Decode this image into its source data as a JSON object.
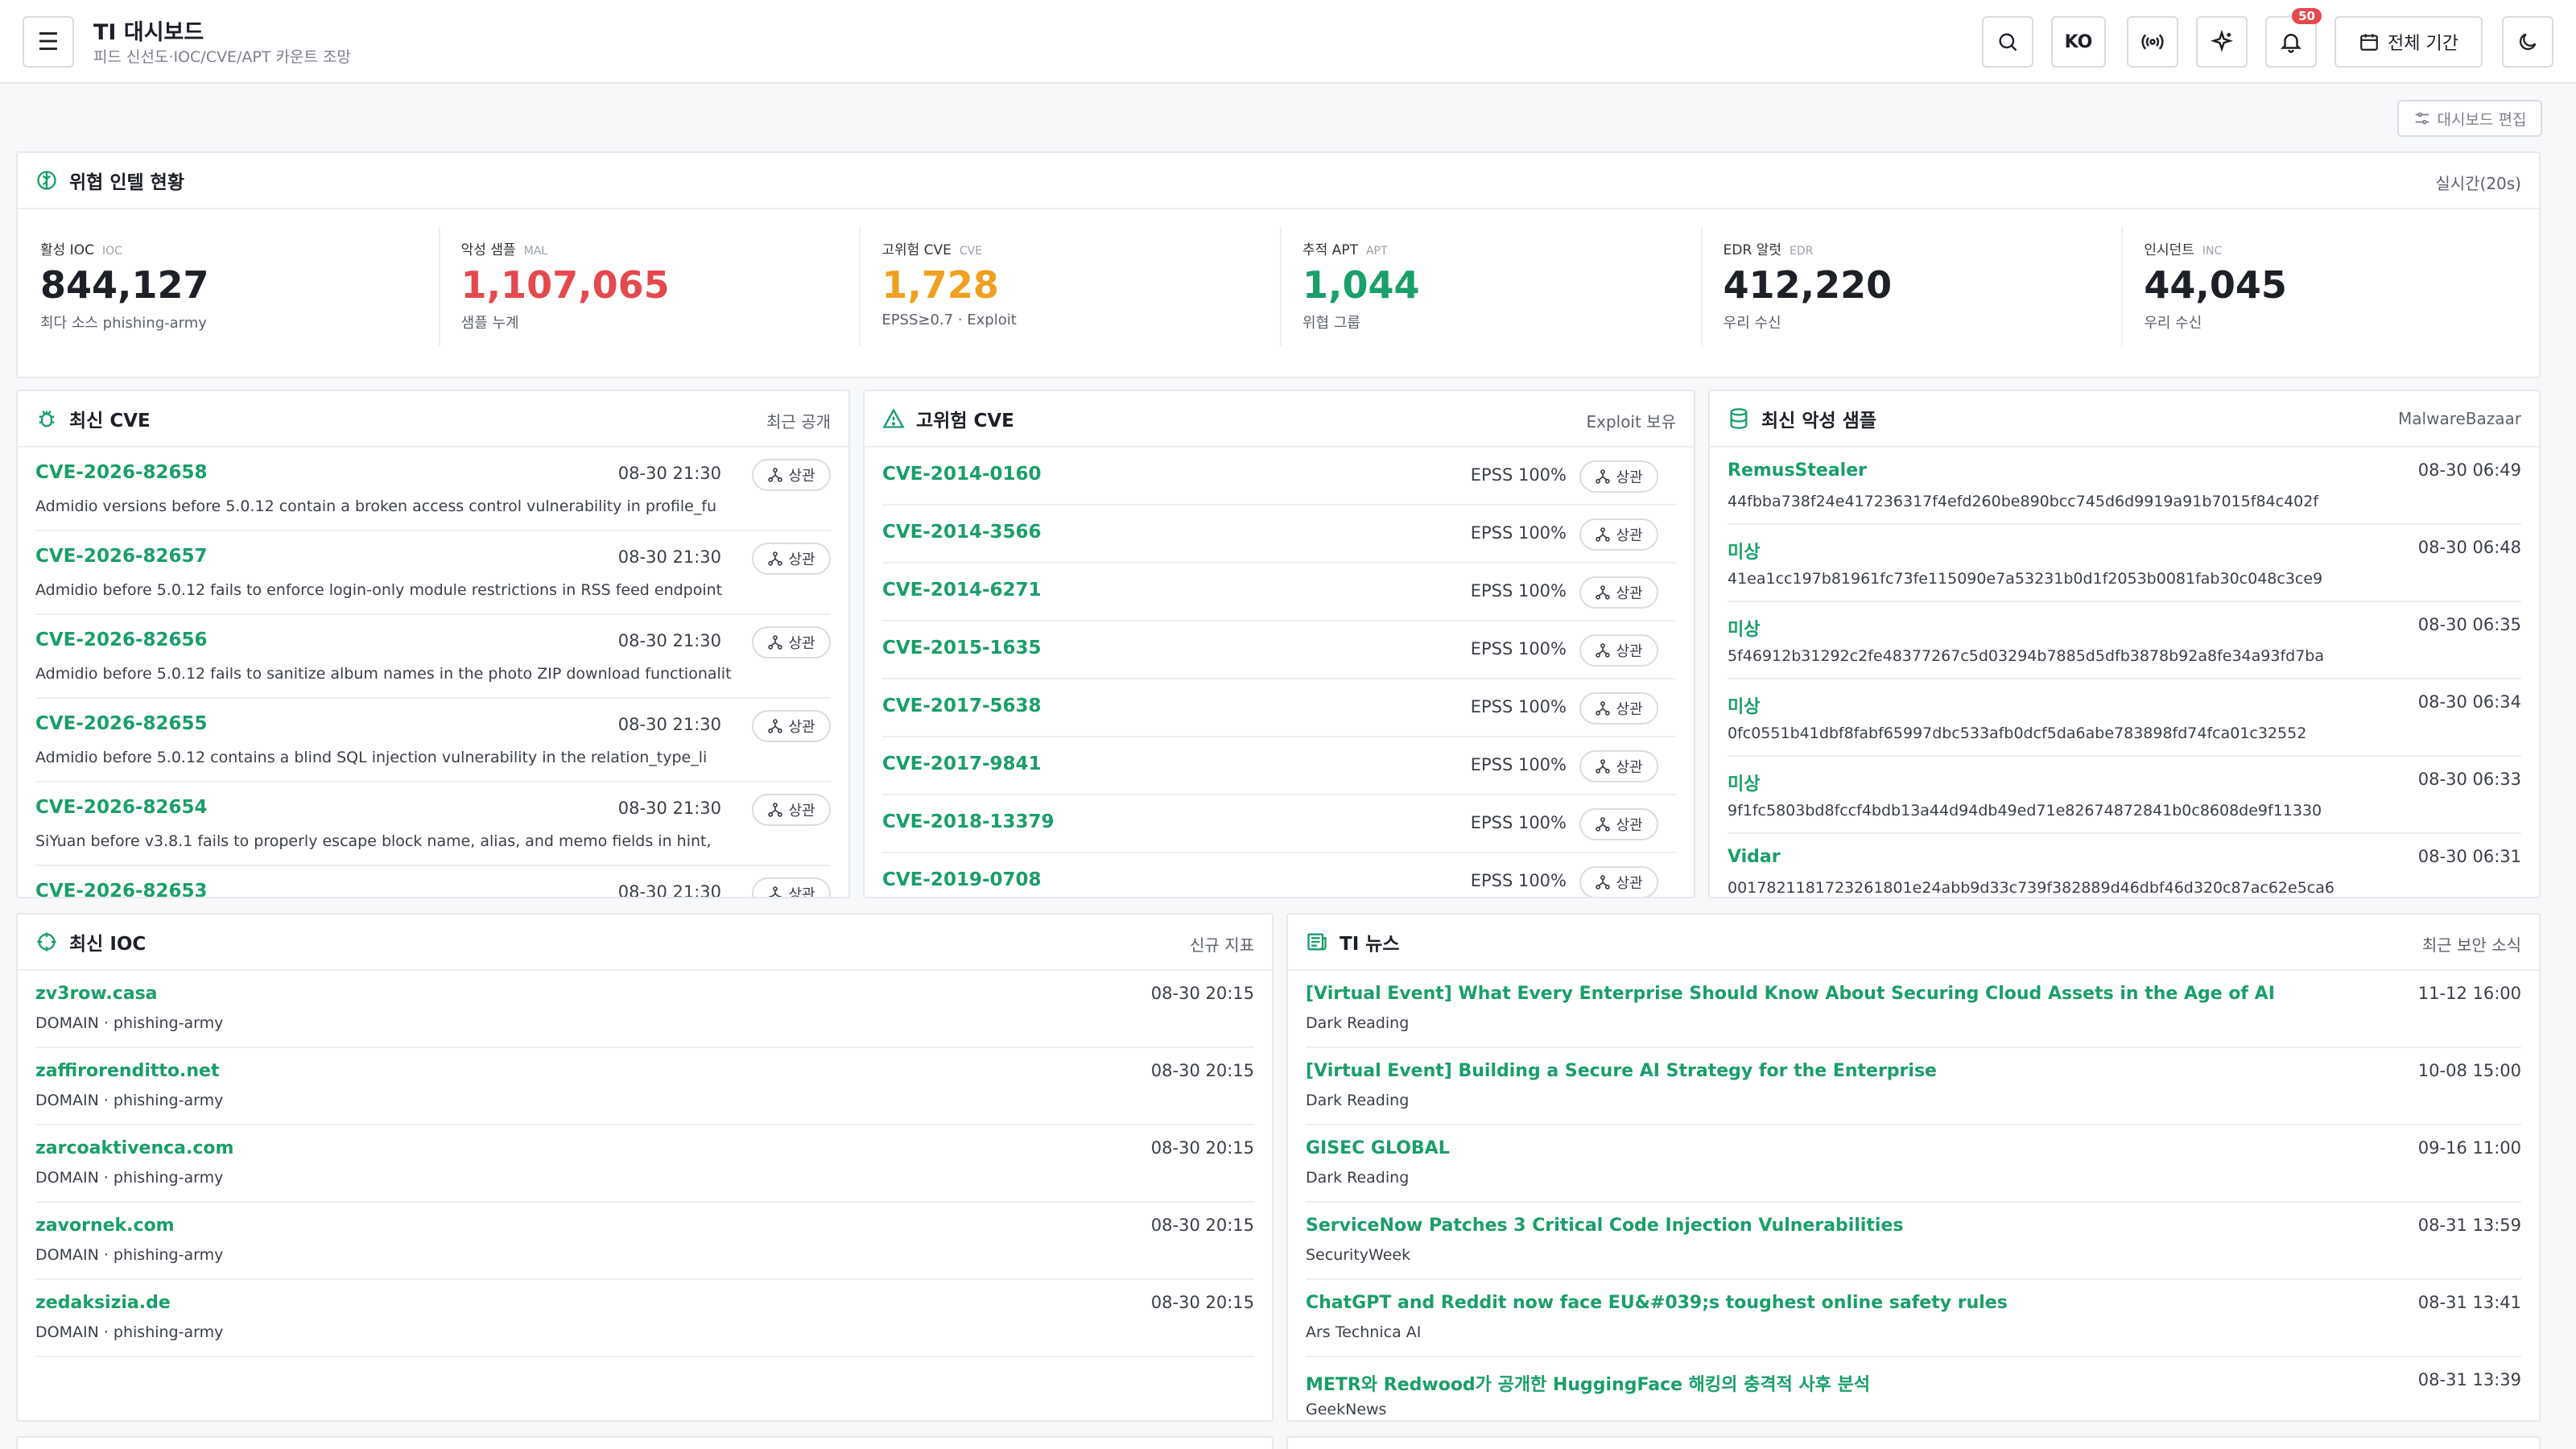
{
  "header": {
    "title": "TI 대시보드",
    "subtitle": "피드 신선도·IOC/CVE/APT 카운트 조망",
    "lang_label": "KO",
    "notif_count": "50",
    "period_label": "전체 기간"
  },
  "edit_label": "대시보드 편집",
  "overview": {
    "title": "위협 인텔 현황",
    "right": "실시간(20s)",
    "metrics": [
      {
        "label": "활성 IOC",
        "tag": "IOC",
        "value": "844,127",
        "sub": "최다 소스 phishing-army",
        "color": "#1d2027"
      },
      {
        "label": "악성 샘플",
        "tag": "MAL",
        "value": "1,107,065",
        "sub": "샘플 누계",
        "color": "#e5484d"
      },
      {
        "label": "고위험 CVE",
        "tag": "CVE",
        "value": "1,728",
        "sub": "EPSS≥0.7 · Exploit",
        "color": "#f0a020"
      },
      {
        "label": "추적 APT",
        "tag": "APT",
        "value": "1,044",
        "sub": "위협 그룹",
        "color": "#1a9e6a"
      },
      {
        "label": "EDR 알럿",
        "tag": "EDR",
        "value": "412,220",
        "sub": "우리 수신",
        "color": "#1d2027"
      },
      {
        "label": "인시던트",
        "tag": "INC",
        "value": "44,045",
        "sub": "우리 수신",
        "color": "#1d2027"
      }
    ]
  },
  "recent_cve": {
    "title": "최신 CVE",
    "right": "최근 공개",
    "corr_label": "상관",
    "items": [
      {
        "id": "CVE-2026-82658",
        "time": "08-30 21:30",
        "desc": "Admidio versions before 5.0.12 contain a broken access control vulnerability in profile_fu"
      },
      {
        "id": "CVE-2026-82657",
        "time": "08-30 21:30",
        "desc": "Admidio before 5.0.12 fails to enforce login-only module restrictions in RSS feed endpoint"
      },
      {
        "id": "CVE-2026-82656",
        "time": "08-30 21:30",
        "desc": "Admidio before 5.0.12 fails to sanitize album names in the photo ZIP download functionalit"
      },
      {
        "id": "CVE-2026-82655",
        "time": "08-30 21:30",
        "desc": "Admidio before 5.0.12 contains a blind SQL injection vulnerability in the relation_type_li"
      },
      {
        "id": "CVE-2026-82654",
        "time": "08-30 21:30",
        "desc": "SiYuan before v3.8.1 fails to properly escape block name, alias, and memo fields in hint,"
      },
      {
        "id": "CVE-2026-82653",
        "time": "08-30 21:30",
        "desc": ""
      }
    ]
  },
  "high_cve": {
    "title": "고위험 CVE",
    "right": "Exploit 보유",
    "corr_label": "상관",
    "items": [
      {
        "id": "CVE-2014-0160",
        "epss": "EPSS 100%"
      },
      {
        "id": "CVE-2014-3566",
        "epss": "EPSS 100%"
      },
      {
        "id": "CVE-2014-6271",
        "epss": "EPSS 100%"
      },
      {
        "id": "CVE-2015-1635",
        "epss": "EPSS 100%"
      },
      {
        "id": "CVE-2017-5638",
        "epss": "EPSS 100%"
      },
      {
        "id": "CVE-2017-9841",
        "epss": "EPSS 100%"
      },
      {
        "id": "CVE-2018-13379",
        "epss": "EPSS 100%"
      },
      {
        "id": "CVE-2019-0708",
        "epss": "EPSS 100%"
      }
    ]
  },
  "malware": {
    "title": "최신 악성 샘플",
    "right": "MalwareBazaar",
    "items": [
      {
        "name": "RemusStealer",
        "time": "08-30 06:49",
        "hash": "44fbba738f24e417236317f4efd260be890bcc745d6d9919a91b7015f84c402f"
      },
      {
        "name": "미상",
        "time": "08-30 06:48",
        "hash": "41ea1cc197b81961fc73fe115090e7a53231b0d1f2053b0081fab30c048c3ce9"
      },
      {
        "name": "미상",
        "time": "08-30 06:35",
        "hash": "5f46912b31292c2fe48377267c5d03294b7885d5dfb3878b92a8fe34a93fd7ba"
      },
      {
        "name": "미상",
        "time": "08-30 06:34",
        "hash": "0fc0551b41dbf8fabf65997dbc533afb0dcf5da6abe783898fd74fca01c32552"
      },
      {
        "name": "미상",
        "time": "08-30 06:33",
        "hash": "9f1fc5803bd8fccf4bdb13a44d94db49ed71e82674872841b0c8608de9f11330"
      },
      {
        "name": "Vidar",
        "time": "08-30 06:31",
        "hash": "0017821181723261801e24abb9d33c739f382889d46dbf46d320c87ac62e5ca6"
      }
    ]
  },
  "ioc": {
    "title": "최신 IOC",
    "right": "신규 지표",
    "items": [
      {
        "value": "zv3row.casa",
        "time": "08-30 20:15",
        "meta": "DOMAIN · phishing-army"
      },
      {
        "value": "zaffirorenditto.net",
        "time": "08-30 20:15",
        "meta": "DOMAIN · phishing-army"
      },
      {
        "value": "zarcoaktivenca.com",
        "time": "08-30 20:15",
        "meta": "DOMAIN · phishing-army"
      },
      {
        "value": "zavornek.com",
        "time": "08-30 20:15",
        "meta": "DOMAIN · phishing-army"
      },
      {
        "value": "zedaksizia.de",
        "time": "08-30 20:15",
        "meta": "DOMAIN · phishing-army"
      }
    ]
  },
  "news": {
    "title": "TI 뉴스",
    "right": "최근 보안 소식",
    "items": [
      {
        "title": "[Virtual Event] What Every Enterprise Should Know About Securing Cloud Assets in the Age of AI",
        "time": "11-12 16:00",
        "source": "Dark Reading"
      },
      {
        "title": "[Virtual Event] Building a Secure AI Strategy for the Enterprise",
        "time": "10-08 15:00",
        "source": "Dark Reading"
      },
      {
        "title": "GISEC GLOBAL",
        "time": "09-16 11:00",
        "source": "Dark Reading"
      },
      {
        "title": "ServiceNow Patches 3 Critical Code Injection Vulnerabilities",
        "time": "08-31 13:59",
        "source": "SecurityWeek"
      },
      {
        "title": "ChatGPT and Reddit now face EU&#039;s toughest online safety rules",
        "time": "08-31 13:41",
        "source": "Ars Technica AI"
      },
      {
        "title": "METR와 Redwood가 공개한 HuggingFace 해킹의 충격적 사후 분석",
        "time": "08-31 13:39",
        "source": "GeekNews"
      }
    ]
  },
  "colors": {
    "accent": "#1a9e6a",
    "danger": "#e5484d",
    "warning": "#f0a020"
  }
}
